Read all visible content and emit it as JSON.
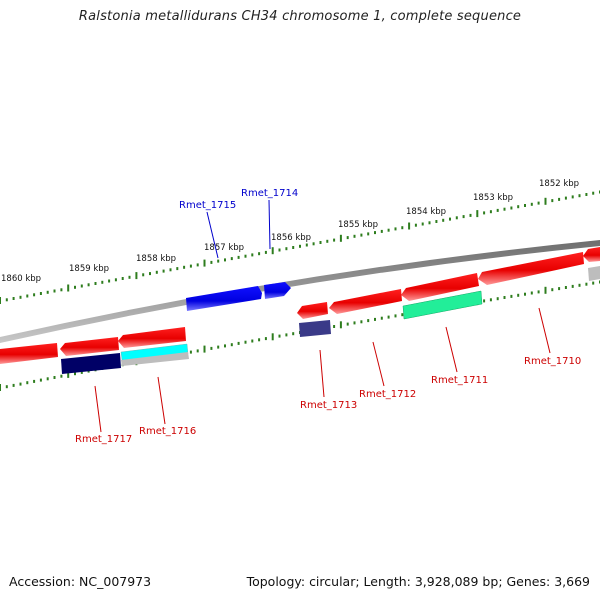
{
  "title": "Ralstonia metallidurans CH34 chromosome 1, complete sequence",
  "accession_label": "Accession:",
  "accession": "NC_007973",
  "topology_label": "Topology:",
  "topology": "circular",
  "length_label": "Length:",
  "length": "3,928,089 bp",
  "genes_label": "Genes:",
  "genes": "3,669",
  "ticks": [
    "1860 kbp",
    "1859 kbp",
    "1858 kbp",
    "1857 kbp",
    "1856 kbp",
    "1855 kbp",
    "1854 kbp",
    "1853 kbp",
    "1852 kbp"
  ],
  "genes_labeled": [
    {
      "name": "Rmet_1715",
      "color": "#0000cc"
    },
    {
      "name": "Rmet_1714",
      "color": "#0000cc"
    },
    {
      "name": "Rmet_1717",
      "color": "#cc0000"
    },
    {
      "name": "Rmet_1716",
      "color": "#cc0000"
    },
    {
      "name": "Rmet_1713",
      "color": "#cc0000"
    },
    {
      "name": "Rmet_1712",
      "color": "#cc0000"
    },
    {
      "name": "Rmet_1711",
      "color": "#cc0000"
    },
    {
      "name": "Rmet_1710",
      "color": "#cc0000"
    }
  ],
  "colors": {
    "backbone": "#8a8a8a",
    "scale": "#2e7d1e",
    "forward_gene": "#0000ee",
    "reverse_gene": "#ee0000",
    "cog_navy": "#000066",
    "cog_slate": "#3a3a88",
    "cog_cyan": "#00ffff",
    "cog_spring": "#22ee99",
    "cog_grey": "#bdbdbd"
  }
}
